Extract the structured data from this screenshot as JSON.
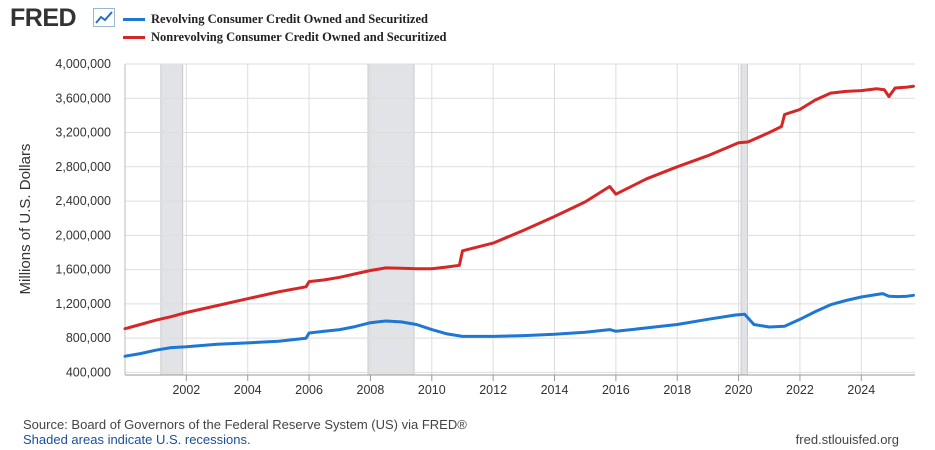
{
  "header": {
    "logo_text": "FRED",
    "logo_icon": "line-chart-icon"
  },
  "footer": {
    "source": "Source: Board of Governors of the Federal Reserve System (US) via FRED®",
    "recession_note": "Shaded areas indicate U.S. recessions.",
    "site": "fred.stlouisfed.org"
  },
  "chart_data": {
    "type": "line",
    "title": "",
    "xlabel": "",
    "ylabel": "Millions of U.S. Dollars",
    "xlim": [
      2000.0,
      2025.75
    ],
    "ylim": [
      370000,
      4000000
    ],
    "y_ticks": [
      400000,
      800000,
      1200000,
      1600000,
      2000000,
      2400000,
      2800000,
      3200000,
      3600000,
      4000000
    ],
    "y_tick_labels": [
      "400,000",
      "800,000",
      "1,200,000",
      "1,600,000",
      "2,000,000",
      "2,400,000",
      "2,800,000",
      "3,200,000",
      "3,600,000",
      "4,000,000"
    ],
    "x_ticks": [
      2002,
      2004,
      2006,
      2008,
      2010,
      2012,
      2014,
      2016,
      2018,
      2020,
      2022,
      2024
    ],
    "x_tick_labels": [
      "2002",
      "2004",
      "2006",
      "2008",
      "2010",
      "2012",
      "2014",
      "2016",
      "2018",
      "2020",
      "2022",
      "2024"
    ],
    "grid": true,
    "recessions": [
      [
        2001.17,
        2001.88
      ],
      [
        2007.92,
        2009.42
      ],
      [
        2020.08,
        2020.29
      ]
    ],
    "series": [
      {
        "name": "Revolving Consumer Credit Owned and Securitized",
        "color": "#1f77d4",
        "x": [
          2000.0,
          2000.5,
          2001.0,
          2001.5,
          2002.0,
          2003.0,
          2004.0,
          2005.0,
          2005.9,
          2006.0,
          2006.5,
          2007.0,
          2007.5,
          2008.0,
          2008.5,
          2009.0,
          2009.5,
          2010.0,
          2010.5,
          2011.0,
          2012.0,
          2013.0,
          2014.0,
          2015.0,
          2015.8,
          2016.0,
          2017.0,
          2018.0,
          2019.0,
          2019.9,
          2020.2,
          2020.5,
          2021.0,
          2021.5,
          2022.0,
          2022.5,
          2023.0,
          2023.5,
          2024.0,
          2024.5,
          2024.7,
          2024.9,
          2025.2,
          2025.5,
          2025.7
        ],
        "values": [
          590000,
          620000,
          660000,
          690000,
          700000,
          730000,
          745000,
          765000,
          800000,
          860000,
          880000,
          900000,
          935000,
          980000,
          1000000,
          990000,
          960000,
          900000,
          850000,
          820000,
          820000,
          830000,
          845000,
          870000,
          900000,
          880000,
          920000,
          960000,
          1020000,
          1070000,
          1080000,
          960000,
          930000,
          940000,
          1020000,
          1110000,
          1190000,
          1240000,
          1280000,
          1310000,
          1320000,
          1290000,
          1285000,
          1290000,
          1300000
        ]
      },
      {
        "name": "Nonrevolving Consumer Credit Owned and Securitized",
        "color": "#d62728",
        "x": [
          2000.0,
          2000.5,
          2001.0,
          2001.5,
          2002.0,
          2003.0,
          2004.0,
          2005.0,
          2005.9,
          2006.0,
          2006.5,
          2007.0,
          2007.5,
          2008.0,
          2008.5,
          2009.0,
          2009.5,
          2010.0,
          2010.5,
          2010.9,
          2011.0,
          2012.0,
          2013.0,
          2014.0,
          2015.0,
          2015.8,
          2016.0,
          2017.0,
          2018.0,
          2019.0,
          2020.0,
          2020.3,
          2020.5,
          2021.0,
          2021.4,
          2021.5,
          2022.0,
          2022.5,
          2023.0,
          2023.5,
          2024.0,
          2024.5,
          2024.75,
          2024.9,
          2025.1,
          2025.5,
          2025.7
        ],
        "values": [
          910000,
          960000,
          1010000,
          1050000,
          1100000,
          1180000,
          1260000,
          1340000,
          1400000,
          1460000,
          1480000,
          1510000,
          1550000,
          1590000,
          1620000,
          1615000,
          1610000,
          1610000,
          1630000,
          1650000,
          1820000,
          1910000,
          2060000,
          2220000,
          2390000,
          2570000,
          2480000,
          2660000,
          2800000,
          2930000,
          3080000,
          3090000,
          3120000,
          3200000,
          3270000,
          3410000,
          3470000,
          3580000,
          3660000,
          3680000,
          3690000,
          3710000,
          3700000,
          3620000,
          3720000,
          3730000,
          3740000
        ]
      }
    ]
  }
}
